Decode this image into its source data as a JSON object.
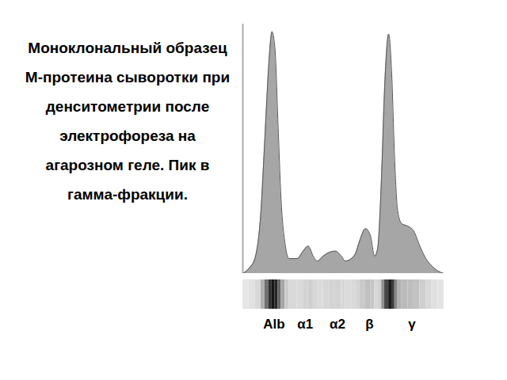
{
  "chart_data": {
    "type": "area",
    "title": "Моноклональный образец М-протеина сыворотки при денситометрии после электрофореза на агарозном геле. Пик в гамма-фракции.",
    "x": [
      0,
      3,
      6,
      9,
      11,
      13,
      14.5,
      16,
      17.5,
      19,
      21,
      23,
      27,
      30,
      32.5,
      35,
      37,
      40,
      43,
      46,
      49,
      51,
      54,
      56,
      58,
      61,
      63.5,
      65.5,
      67,
      69,
      70.5,
      72.5,
      74,
      75.5,
      77,
      79,
      82,
      85,
      88,
      91,
      94,
      97,
      100
    ],
    "values": [
      0,
      2,
      6,
      25,
      55,
      85,
      97,
      90,
      60,
      30,
      12,
      6,
      6,
      9,
      11,
      7,
      5,
      7,
      8.5,
      9,
      7,
      5,
      6,
      8,
      13,
      18,
      15,
      7,
      10,
      40,
      75,
      96,
      80,
      45,
      25,
      20,
      19,
      17,
      11,
      6,
      3,
      1,
      0
    ],
    "color": "#a6a6a6",
    "xlim": [
      0,
      100
    ],
    "ylim": [
      0,
      100
    ],
    "xticks": [
      {
        "value": 15.5,
        "label": "Alb"
      },
      {
        "value": 31,
        "label": "α1"
      },
      {
        "value": 47,
        "label": "α2"
      },
      {
        "value": 63,
        "label": "β"
      },
      {
        "value": 84,
        "label": "γ"
      }
    ],
    "tick_labels": "x",
    "grid": false
  }
}
